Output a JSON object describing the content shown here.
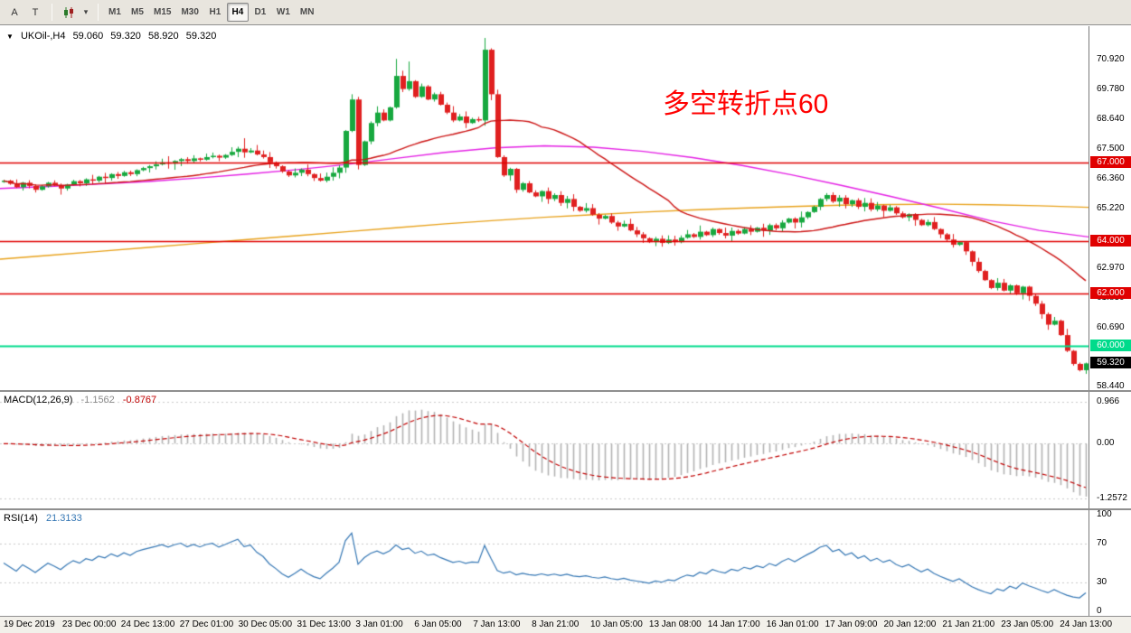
{
  "toolbar": {
    "tool_a": "A",
    "tool_t": "T",
    "caret": "▾",
    "timeframes": [
      "M1",
      "M5",
      "M15",
      "M30",
      "H1",
      "H4",
      "D1",
      "W1",
      "MN"
    ],
    "active_timeframe": "H4"
  },
  "main_chart": {
    "symbol_line": {
      "marker": "▼",
      "symbol": "UKOil-,H4",
      "open": "59.060",
      "high": "59.320",
      "low": "58.920",
      "close": "59.320"
    },
    "annotation": {
      "text": "多空转折点60",
      "color": "#ff0000"
    },
    "levels": [
      {
        "price": 67.0,
        "label": "67.000",
        "color": "#e00000"
      },
      {
        "price": 64.0,
        "label": "64.000",
        "color": "#e00000"
      },
      {
        "price": 62.0,
        "label": "62.000",
        "color": "#e00000"
      },
      {
        "price": 60.0,
        "label": "60.000",
        "color": "#00db8b"
      }
    ],
    "current_price": {
      "label": "59.320",
      "price": 59.32
    },
    "axis_ticks": [
      "70.920",
      "69.780",
      "68.640",
      "67.500",
      "66.360",
      "65.220",
      "62.970",
      "61.830",
      "60.690",
      "58.440"
    ]
  },
  "macd_panel": {
    "label": "MACD(12,26,9)",
    "value_main": "-1.1562",
    "value_signal": "-0.8767",
    "axis_ticks": [
      "0.966",
      "0.00",
      "-1.2572"
    ]
  },
  "rsi_panel": {
    "label": "RSI(14)",
    "value": "21.3133",
    "axis_ticks": [
      "100",
      "70",
      "30",
      "0"
    ]
  },
  "colors": {
    "candle_up": "#17a83f",
    "candle_down": "#e02020",
    "ma_red": "#cc1414",
    "ma_magenta": "#e421e4",
    "ma_orange": "#e8a21c",
    "macd_histogram": "#b2b2b2",
    "macd_signal": "#c00000",
    "rsi_line": "#3577b4",
    "grid_dotted": "#c9c9c9"
  },
  "chart_data": {
    "type": "candlestick+indicators",
    "symbol": "UKOil",
    "timeframe": "H4",
    "price_range": [
      58.3,
      72.2
    ],
    "x_labels": [
      "19 Dec 2019",
      "23 Dec 00:00",
      "24 Dec 13:00",
      "27 Dec 01:00",
      "30 Dec 05:00",
      "31 Dec 13:00",
      "3 Jan 01:00",
      "6 Jan 05:00",
      "7 Jan 13:00",
      "8 Jan 21:00",
      "10 Jan 05:00",
      "13 Jan 08:00",
      "14 Jan 17:00",
      "16 Jan 01:00",
      "17 Jan 09:00",
      "20 Jan 12:00",
      "21 Jan 21:00",
      "23 Jan 05:00",
      "24 Jan 13:00"
    ],
    "closes": [
      66.3,
      66.18,
      66.05,
      66.22,
      66.1,
      65.95,
      66.08,
      66.22,
      66.12,
      66.0,
      66.15,
      66.28,
      66.2,
      66.35,
      66.3,
      66.45,
      66.4,
      66.55,
      66.48,
      66.62,
      66.55,
      66.7,
      66.78,
      66.85,
      66.92,
      67.0,
      66.95,
      67.05,
      67.12,
      67.05,
      67.15,
      67.1,
      67.2,
      67.25,
      67.18,
      67.28,
      67.4,
      67.52,
      67.38,
      67.45,
      67.3,
      67.2,
      67.0,
      66.85,
      66.65,
      66.5,
      66.6,
      66.72,
      66.55,
      66.4,
      66.3,
      66.45,
      66.6,
      66.8,
      68.2,
      69.4,
      66.9,
      67.8,
      68.5,
      68.9,
      68.6,
      69.1,
      70.3,
      69.8,
      70.1,
      69.5,
      69.9,
      69.4,
      69.6,
      69.2,
      68.9,
      68.6,
      68.75,
      68.5,
      68.65,
      68.6,
      71.3,
      69.6,
      67.2,
      66.5,
      66.75,
      65.95,
      66.2,
      65.85,
      65.7,
      65.9,
      65.6,
      65.75,
      65.45,
      65.6,
      65.3,
      65.15,
      65.25,
      65.0,
      64.85,
      64.95,
      64.7,
      64.55,
      64.65,
      64.4,
      64.25,
      64.1,
      63.95,
      64.08,
      63.92,
      64.05,
      63.95,
      64.12,
      64.25,
      64.15,
      64.35,
      64.22,
      64.45,
      64.3,
      64.2,
      64.38,
      64.28,
      64.45,
      64.35,
      64.5,
      64.4,
      64.6,
      64.48,
      64.7,
      64.85,
      64.7,
      64.9,
      65.1,
      65.3,
      65.6,
      65.75,
      65.5,
      65.65,
      65.4,
      65.55,
      65.3,
      65.45,
      65.2,
      65.35,
      65.15,
      65.28,
      65.05,
      64.9,
      65.02,
      64.8,
      64.6,
      64.72,
      64.45,
      64.25,
      64.05,
      63.85,
      63.95,
      63.6,
      63.2,
      62.85,
      62.5,
      62.2,
      62.4,
      62.1,
      62.3,
      62.0,
      62.25,
      61.9,
      61.6,
      61.2,
      60.8,
      60.95,
      60.4,
      59.8,
      59.3,
      59.06,
      59.32
    ],
    "wick_overrides": {
      "38": [
        67.92,
        null
      ],
      "54": [
        null,
        66.6
      ],
      "55": [
        69.6,
        null
      ],
      "62": [
        70.95,
        null
      ],
      "63": [
        70.5,
        null
      ],
      "64": [
        70.85,
        null
      ],
      "76": [
        71.75,
        68.4
      ],
      "171": [
        59.35,
        58.92
      ]
    },
    "ma_red_period": 30,
    "ma_magenta": [
      66.0,
      66.08,
      66.17,
      66.27,
      66.4,
      66.55,
      66.72,
      66.92,
      67.15,
      67.38,
      67.55,
      67.63,
      67.58,
      67.42,
      67.18,
      66.88,
      66.52,
      66.12,
      65.7,
      65.25,
      64.78,
      64.4,
      64.15
    ],
    "ma_orange": [
      63.3,
      63.45,
      63.6,
      63.75,
      63.9,
      64.05,
      64.2,
      64.35,
      64.5,
      64.65,
      64.78,
      64.9,
      65.0,
      65.1,
      65.18,
      65.25,
      65.31,
      65.36,
      65.39,
      65.4,
      65.38,
      65.34,
      65.28
    ],
    "levels": [
      67.0,
      64.0,
      62.0,
      60.0
    ],
    "macd": {
      "params": [
        12,
        26,
        9
      ],
      "last_main": -1.1562,
      "last_signal": -0.8767
    },
    "rsi": {
      "period": 14,
      "last": 21.3133
    }
  }
}
